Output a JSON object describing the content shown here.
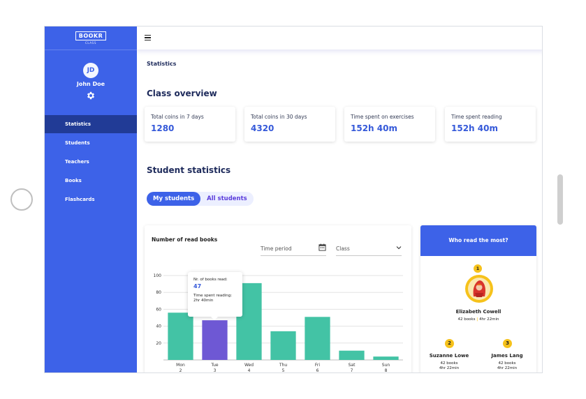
{
  "sidebar": {
    "logo": "BOOKR",
    "logo_sub": "CLASS",
    "avatar_initials": "JD",
    "user_name": "John Doe",
    "items": [
      {
        "label": "Statistics",
        "active": true
      },
      {
        "label": "Students",
        "active": false
      },
      {
        "label": "Teachers",
        "active": false
      },
      {
        "label": "Books",
        "active": false
      },
      {
        "label": "Flashcards",
        "active": false
      }
    ]
  },
  "header": {
    "icon": "hamburger-menu-icon"
  },
  "breadcrumb": "Statistics",
  "overview": {
    "title": "Class overview",
    "cards": [
      {
        "label": "Total coins in 7 days",
        "value": "1280"
      },
      {
        "label": "Total coins in 30 days",
        "value": "4320"
      },
      {
        "label": "Time spent on exercises",
        "value": "152h 40m"
      },
      {
        "label": "Time spent reading",
        "value": "152h 40m"
      }
    ]
  },
  "student_stats": {
    "title": "Student statistics",
    "tabs": [
      {
        "label": "My students",
        "active": true
      },
      {
        "label": "All students",
        "active": false
      }
    ]
  },
  "chart_card": {
    "title": "Number of read books",
    "time_period_placeholder": "Time period",
    "class_placeholder": "Class",
    "tooltip": {
      "label": "Nr. of books read:",
      "value": "47",
      "time_label": "Time spent reading:",
      "time_value": "2hr 40min"
    }
  },
  "chart_data": {
    "type": "bar",
    "categories": [
      "Mon",
      "Tue",
      "Wed",
      "Thu",
      "Fri",
      "Sat",
      "Sun"
    ],
    "dates": [
      "2",
      "3",
      "4",
      "5",
      "6",
      "7",
      "8"
    ],
    "values": [
      56,
      47,
      91,
      34,
      51,
      11,
      4
    ],
    "highlight_index": 1,
    "ylim": [
      0,
      100
    ],
    "yticks": [
      20,
      40,
      60,
      80,
      100
    ],
    "colors": {
      "bar": "#43c3a5",
      "highlight": "#6e58d4",
      "grid": "#e3e3e3"
    }
  },
  "readers": {
    "title": "Who read the most?",
    "top": {
      "rank": "1",
      "name": "Elizabeth Cowell",
      "books": "42 books",
      "time": "4hr 22min"
    },
    "others": [
      {
        "rank": "2",
        "name": "Suzanne Lowe",
        "books": "42 books",
        "time": "4hr 22min"
      },
      {
        "rank": "3",
        "name": "James Lang",
        "books": "42 books",
        "time": "4hr 22min"
      }
    ]
  },
  "colors": {
    "primary": "#3d62e8",
    "sidebar_active": "#213b96",
    "accent_text": "#3559d9",
    "badge": "#f6c21b"
  }
}
